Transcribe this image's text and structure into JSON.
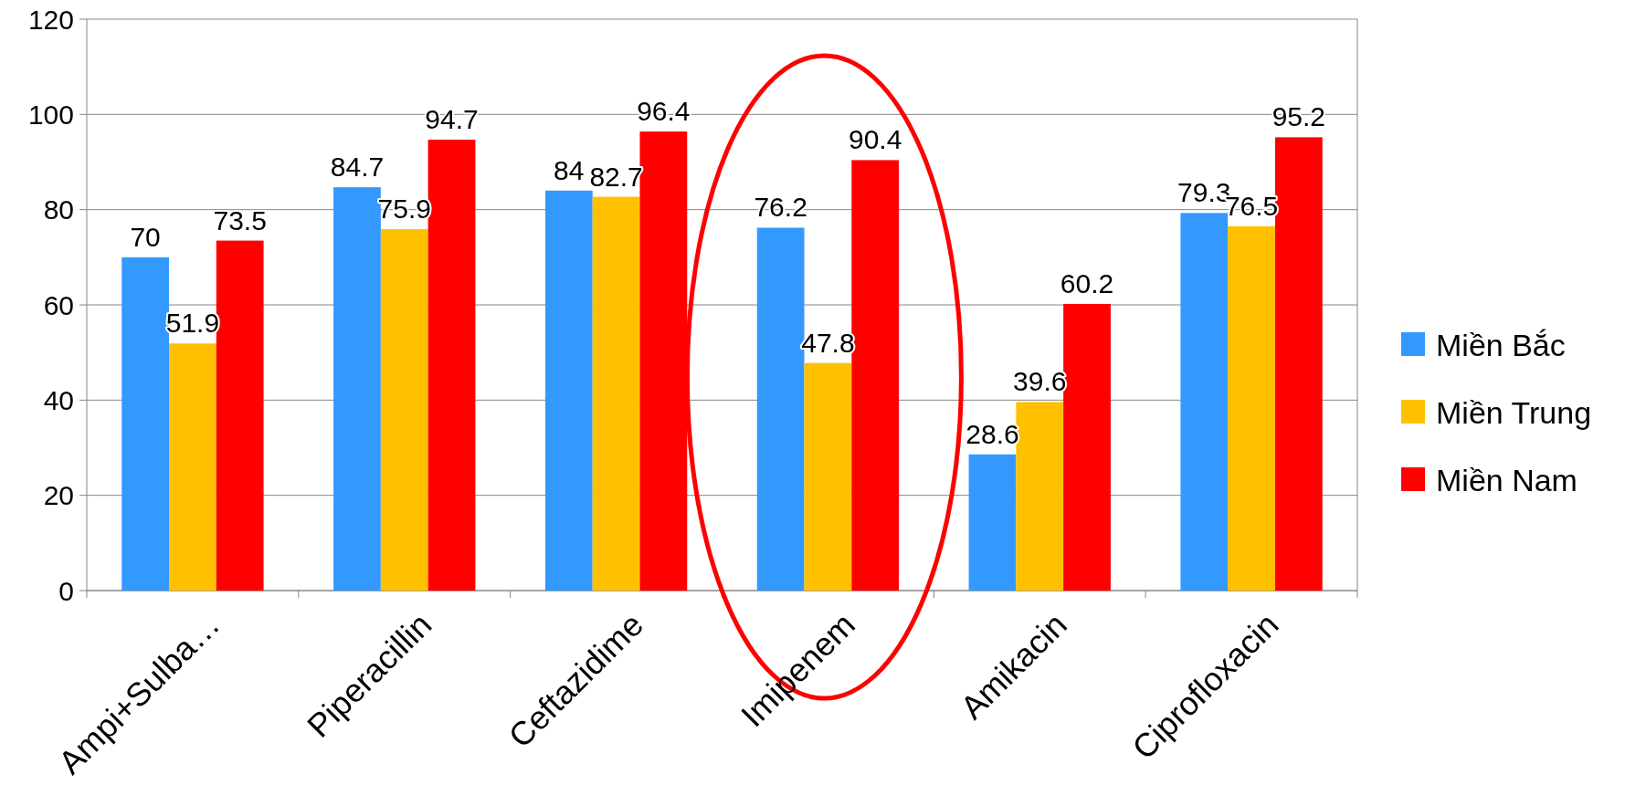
{
  "chart_data": {
    "type": "bar",
    "categories": [
      "Ampi+Sulba…",
      "Piperacillin",
      "Ceftazidime",
      "Imipenem",
      "Amikacin",
      "Ciprofloxacin"
    ],
    "series": [
      {
        "name": "Miền Bắc",
        "color": "#3399ff",
        "values": [
          70,
          84.7,
          84,
          76.2,
          28.6,
          79.3
        ]
      },
      {
        "name": "Miền Trung",
        "color": "#ffc000",
        "values": [
          51.9,
          75.9,
          82.7,
          47.8,
          39.6,
          76.5
        ]
      },
      {
        "name": "Miền Nam",
        "color": "#ff0000",
        "values": [
          73.5,
          94.7,
          96.4,
          90.4,
          60.2,
          95.2
        ]
      }
    ],
    "ylim": [
      0,
      120
    ],
    "yticks": [
      0,
      20,
      40,
      60,
      80,
      100,
      120
    ],
    "grid": "y",
    "legend": "right",
    "data_labels": true
  }
}
